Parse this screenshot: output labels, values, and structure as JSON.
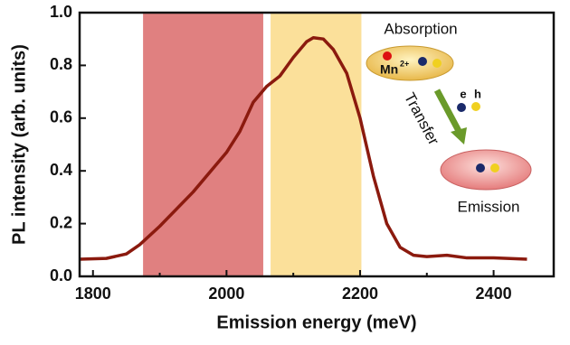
{
  "chart_data": {
    "type": "line",
    "x_label": "Emission energy (meV)",
    "y_label": "PL intensity (arb. units)",
    "xlim": [
      1780,
      2490
    ],
    "ylim": [
      0,
      1.0
    ],
    "xticks": [
      1800,
      2000,
      2200,
      2400
    ],
    "xminor": [
      1900,
      2100,
      2300
    ],
    "yticks": [
      {
        "value": 0,
        "label": "0.0"
      },
      0.2,
      0.4,
      0.6,
      0.8,
      {
        "value": 1,
        "label": "1.0"
      }
    ],
    "regions": [
      {
        "range": [
          1875,
          2055
        ],
        "color": "#e08080"
      },
      {
        "range": [
          2066,
          2202
        ],
        "color": "#fbe09a"
      }
    ],
    "x": [
      1780,
      1820,
      1850,
      1870,
      1900,
      1950,
      2000,
      2020,
      2040,
      2060,
      2080,
      2100,
      2120,
      2130,
      2145,
      2160,
      2180,
      2200,
      2220,
      2240,
      2260,
      2280,
      2300,
      2330,
      2360,
      2400,
      2450
    ],
    "series": [
      {
        "color": "#8b1a0e",
        "values": [
          0.065,
          0.068,
          0.085,
          0.12,
          0.19,
          0.32,
          0.47,
          0.55,
          0.66,
          0.72,
          0.76,
          0.83,
          0.89,
          0.905,
          0.9,
          0.86,
          0.77,
          0.6,
          0.38,
          0.2,
          0.11,
          0.08,
          0.075,
          0.08,
          0.07,
          0.07,
          0.065
        ]
      }
    ],
    "diagram": {
      "absorption": "Absorption",
      "ion": "Mn",
      "charge": "2+",
      "transfer": "Transfer",
      "electron": "e",
      "hole": "h",
      "emission": "Emission"
    }
  }
}
